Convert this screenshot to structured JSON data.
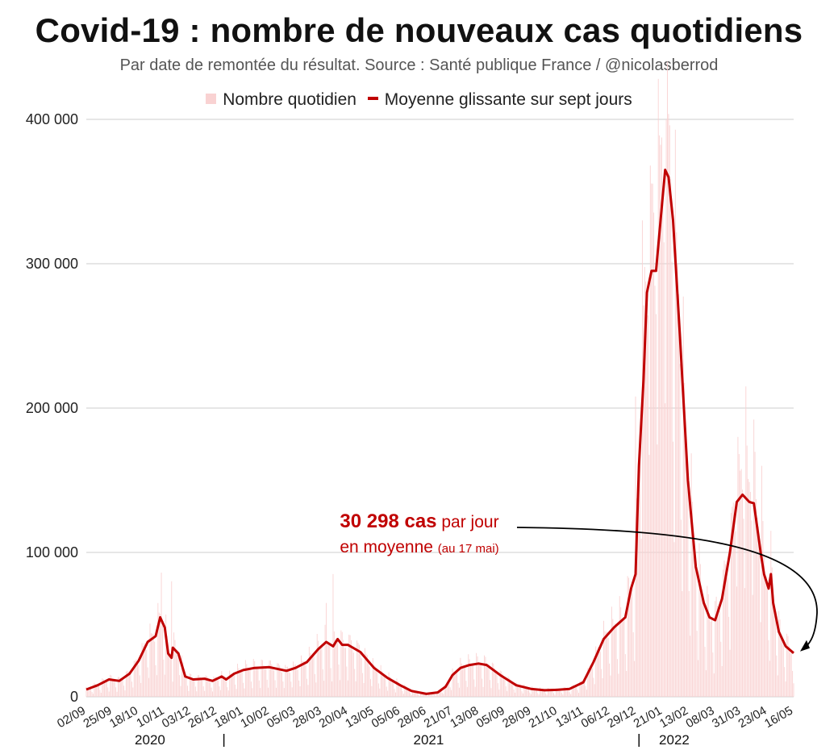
{
  "header": {
    "title": "Covid-19 : nombre de nouveaux cas quotidiens",
    "subtitle": "Par date de remontée du résultat. Source : Santé publique France / @nicolasberrod"
  },
  "legend": {
    "bars_label": "Nombre quotidien",
    "line_label": "Moyenne glissante sur sept jours"
  },
  "annotation": {
    "value": "30 298 cas",
    "suffix": "par jour",
    "line2": "en moyenne",
    "date": "(au 17 mai)"
  },
  "colors": {
    "bars": "#f9d2d2",
    "line": "#c00000",
    "grid": "#cccccc",
    "text": "#222222"
  },
  "chart_data": {
    "type": "bar",
    "title": "Covid-19 : nombre de nouveaux cas quotidiens",
    "ylim": [
      0,
      400000
    ],
    "y_ticks": [
      "0",
      "100 000",
      "200 000",
      "300 000",
      "400 000"
    ],
    "x_tick_labels": [
      "02/09",
      "25/09",
      "18/10",
      "10/11",
      "03/12",
      "26/12",
      "18/01",
      "10/02",
      "05/03",
      "28/03",
      "20/04",
      "13/05",
      "05/06",
      "28/06",
      "21/07",
      "13/08",
      "05/09",
      "28/09",
      "21/10",
      "13/11",
      "06/12",
      "29/12",
      "21/01",
      "13/02",
      "08/03",
      "31/03",
      "23/04",
      "16/05"
    ],
    "x_start": "2020-09-02",
    "x_end": "2022-05-17",
    "years": [
      {
        "label": "2020",
        "date": "2020-10-28"
      },
      {
        "label": "2021",
        "date": "2021-06-30"
      },
      {
        "label": "2022",
        "date": "2022-02-01"
      }
    ],
    "year_separators": [
      "2021-01-01",
      "2022-01-01"
    ],
    "gridlines": true,
    "legend_position": "top",
    "series": [
      {
        "name": "Moyenne glissante sur sept jours",
        "type": "line",
        "points": [
          [
            "2020-09-02",
            5000
          ],
          [
            "2020-09-12",
            8000
          ],
          [
            "2020-09-22",
            12000
          ],
          [
            "2020-10-01",
            11000
          ],
          [
            "2020-10-10",
            16000
          ],
          [
            "2020-10-18",
            25000
          ],
          [
            "2020-10-26",
            38000
          ],
          [
            "2020-11-02",
            42000
          ],
          [
            "2020-11-06",
            55000
          ],
          [
            "2020-11-10",
            48000
          ],
          [
            "2020-11-13",
            30000
          ],
          [
            "2020-11-16",
            27000
          ],
          [
            "2020-11-17",
            34000
          ],
          [
            "2020-11-22",
            30000
          ],
          [
            "2020-11-28",
            14000
          ],
          [
            "2020-12-05",
            12000
          ],
          [
            "2020-12-15",
            12500
          ],
          [
            "2020-12-22",
            11000
          ],
          [
            "2020-12-30",
            14000
          ],
          [
            "2021-01-03",
            12000
          ],
          [
            "2021-01-10",
            16000
          ],
          [
            "2021-01-18",
            18500
          ],
          [
            "2021-01-28",
            20000
          ],
          [
            "2021-02-10",
            20500
          ],
          [
            "2021-02-25",
            18000
          ],
          [
            "2021-03-05",
            20000
          ],
          [
            "2021-03-15",
            24000
          ],
          [
            "2021-03-25",
            33000
          ],
          [
            "2021-04-01",
            38000
          ],
          [
            "2021-04-07",
            35000
          ],
          [
            "2021-04-11",
            40000
          ],
          [
            "2021-04-15",
            36000
          ],
          [
            "2021-04-20",
            36000
          ],
          [
            "2021-05-01",
            31000
          ],
          [
            "2021-05-13",
            20000
          ],
          [
            "2021-05-25",
            13000
          ],
          [
            "2021-06-05",
            8000
          ],
          [
            "2021-06-15",
            4000
          ],
          [
            "2021-06-28",
            2000
          ],
          [
            "2021-07-08",
            3000
          ],
          [
            "2021-07-15",
            7000
          ],
          [
            "2021-07-21",
            15000
          ],
          [
            "2021-07-28",
            20000
          ],
          [
            "2021-08-05",
            22000
          ],
          [
            "2021-08-13",
            23000
          ],
          [
            "2021-08-20",
            22000
          ],
          [
            "2021-09-01",
            15000
          ],
          [
            "2021-09-15",
            8000
          ],
          [
            "2021-09-28",
            5500
          ],
          [
            "2021-10-10",
            4500
          ],
          [
            "2021-10-21",
            4800
          ],
          [
            "2021-11-01",
            5500
          ],
          [
            "2021-11-13",
            10000
          ],
          [
            "2021-11-22",
            24000
          ],
          [
            "2021-12-01",
            40000
          ],
          [
            "2021-12-10",
            48000
          ],
          [
            "2021-12-20",
            55000
          ],
          [
            "2021-12-25",
            75000
          ],
          [
            "2021-12-29",
            85000
          ],
          [
            "2022-01-01",
            160000
          ],
          [
            "2022-01-05",
            220000
          ],
          [
            "2022-01-08",
            280000
          ],
          [
            "2022-01-12",
            295000
          ],
          [
            "2022-01-16",
            295000
          ],
          [
            "2022-01-20",
            330000
          ],
          [
            "2022-01-24",
            365000
          ],
          [
            "2022-01-27",
            360000
          ],
          [
            "2022-01-31",
            330000
          ],
          [
            "2022-02-06",
            250000
          ],
          [
            "2022-02-13",
            150000
          ],
          [
            "2022-02-20",
            90000
          ],
          [
            "2022-02-27",
            65000
          ],
          [
            "2022-03-04",
            55000
          ],
          [
            "2022-03-09",
            53000
          ],
          [
            "2022-03-15",
            68000
          ],
          [
            "2022-03-22",
            100000
          ],
          [
            "2022-03-28",
            135000
          ],
          [
            "2022-04-02",
            140000
          ],
          [
            "2022-04-08",
            135000
          ],
          [
            "2022-04-12",
            134000
          ],
          [
            "2022-04-18",
            100000
          ],
          [
            "2022-04-21",
            85000
          ],
          [
            "2022-04-25",
            75000
          ],
          [
            "2022-04-27",
            85000
          ],
          [
            "2022-04-29",
            65000
          ],
          [
            "2022-05-04",
            45000
          ],
          [
            "2022-05-10",
            35000
          ],
          [
            "2022-05-17",
            30298
          ]
        ]
      },
      {
        "name": "Nombre quotidien",
        "type": "bar",
        "note": "daily counts fluctuate around the moving average; weekday peaks, weekend lows",
        "peaks": [
          [
            "2020-11-07",
            86000
          ],
          [
            "2020-11-16",
            80000
          ],
          [
            "2021-04-01",
            65000
          ],
          [
            "2021-04-07",
            85000
          ],
          [
            "2021-12-29",
            208000
          ],
          [
            "2022-01-04",
            330000
          ],
          [
            "2022-01-11",
            368000
          ],
          [
            "2022-01-18",
            428000
          ],
          [
            "2022-01-25",
            400000
          ],
          [
            "2022-03-29",
            180000
          ],
          [
            "2022-04-05",
            215000
          ],
          [
            "2022-04-12",
            192000
          ],
          [
            "2022-04-19",
            160000
          ]
        ]
      }
    ]
  }
}
